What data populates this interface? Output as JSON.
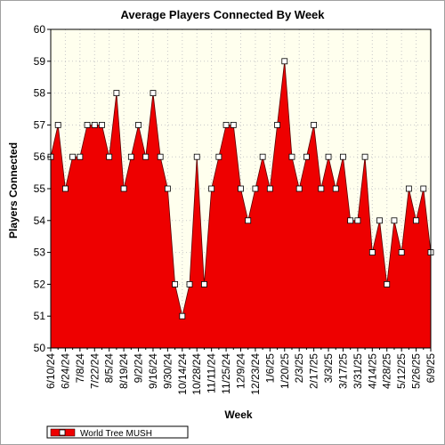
{
  "chart_data": {
    "type": "area",
    "title": "Average Players Connected By Week",
    "xlabel": "Week",
    "ylabel": "Players Connected",
    "ylim": [
      50,
      60
    ],
    "yticks": [
      50,
      51,
      52,
      53,
      54,
      55,
      56,
      57,
      58,
      59,
      60
    ],
    "x_tick_labels": [
      "6/10/24",
      "6/24/24",
      "7/8/24",
      "7/22/24",
      "8/5/24",
      "8/19/24",
      "9/2/24",
      "9/16/24",
      "9/30/24",
      "10/14/24",
      "10/28/24",
      "11/11/24",
      "11/25/24",
      "12/9/24",
      "12/23/24",
      "1/6/25",
      "1/20/25",
      "2/3/25",
      "2/17/25",
      "3/3/25",
      "3/17/25",
      "3/31/25",
      "4/14/25",
      "4/28/25",
      "5/12/25",
      "5/26/25",
      "6/9/25"
    ],
    "x": [
      "6/10/24",
      "6/17/24",
      "6/24/24",
      "7/1/24",
      "7/8/24",
      "7/15/24",
      "7/22/24",
      "7/29/24",
      "8/5/24",
      "8/12/24",
      "8/19/24",
      "8/26/24",
      "9/2/24",
      "9/9/24",
      "9/16/24",
      "9/23/24",
      "9/30/24",
      "10/7/24",
      "10/14/24",
      "10/21/24",
      "10/28/24",
      "11/4/24",
      "11/11/24",
      "11/18/24",
      "11/25/24",
      "12/2/24",
      "12/9/24",
      "12/16/24",
      "12/23/24",
      "12/30/24",
      "1/6/25",
      "1/13/25",
      "1/20/25",
      "1/27/25",
      "2/3/25",
      "2/10/25",
      "2/17/25",
      "2/24/25",
      "3/3/25",
      "3/10/25",
      "3/17/25",
      "3/24/25",
      "3/31/25",
      "4/7/25",
      "4/14/25",
      "4/21/25",
      "4/28/25",
      "5/5/25",
      "5/12/25",
      "5/19/25",
      "5/26/25",
      "6/2/25",
      "6/9/25"
    ],
    "series": [
      {
        "name": "World Tree MUSH",
        "color": "#ee0000",
        "values": [
          56,
          57,
          55,
          56,
          56,
          57,
          57,
          57,
          56,
          58,
          55,
          56,
          57,
          56,
          58,
          56,
          55,
          52,
          51,
          52,
          56,
          52,
          55,
          56,
          57,
          57,
          55,
          54,
          55,
          56,
          55,
          57,
          59,
          56,
          55,
          56,
          57,
          55,
          56,
          55,
          56,
          54,
          54,
          56,
          53,
          54,
          52,
          54,
          53,
          55,
          54,
          55,
          53
        ]
      }
    ],
    "grid": true,
    "legend": "bottom-left",
    "plot_background": "#ffffee"
  }
}
